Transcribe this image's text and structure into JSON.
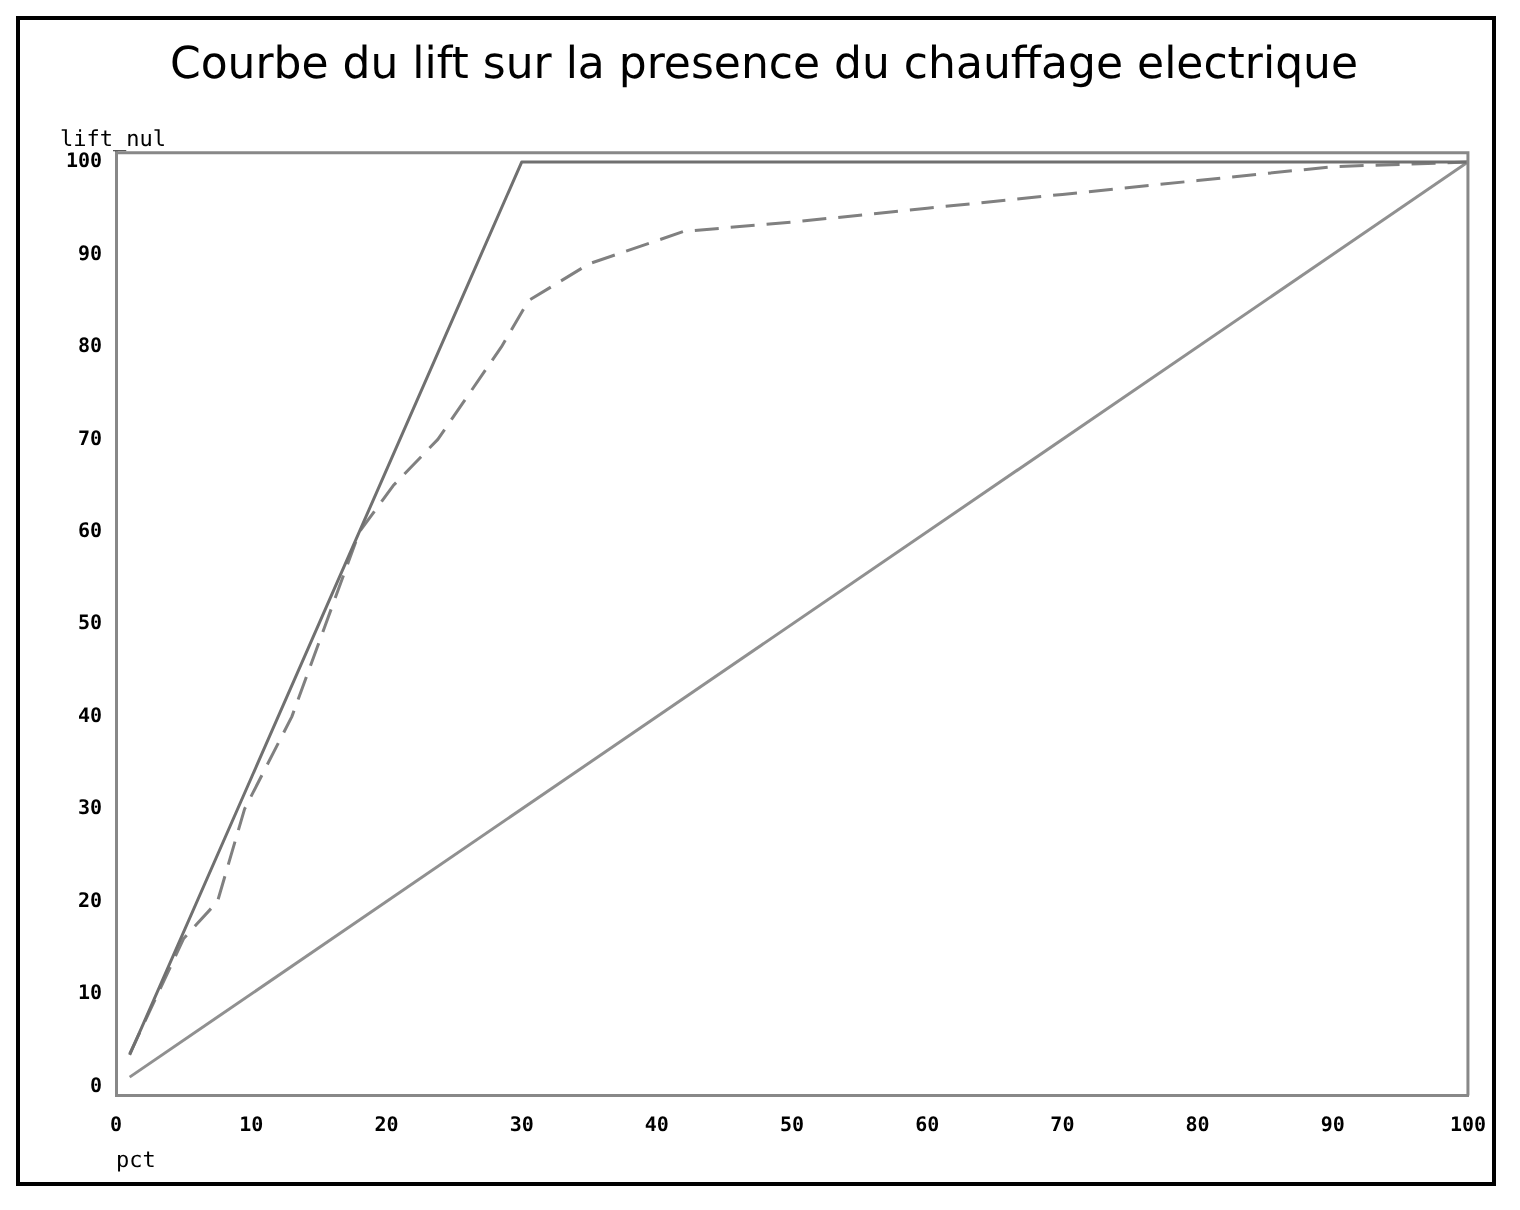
{
  "chart_data": {
    "type": "line",
    "title": "Courbe du lift sur la presence du chauffage electrique",
    "xlabel": "pct",
    "ylabel": "lift_nul",
    "xlim": [
      0,
      100
    ],
    "xticks": [
      0,
      10,
      20,
      30,
      40,
      50,
      60,
      70,
      80,
      90,
      100
    ],
    "ylim": [
      -1,
      101
    ],
    "yticks": [
      0,
      10,
      20,
      30,
      40,
      50,
      60,
      70,
      80,
      90,
      100
    ],
    "grid": false,
    "legend": false,
    "marker": "none",
    "series": [
      {
        "color": "#707070",
        "line_style": "solid",
        "x": [
          1,
          30,
          100
        ],
        "values": [
          3.4,
          100,
          100
        ]
      },
      {
        "color": "#808080",
        "line_style": "dashed",
        "x": [
          1,
          5,
          7.5,
          9.5,
          13,
          15.5,
          18,
          20.5,
          23.8,
          28.5,
          30.5,
          35,
          42,
          50,
          60,
          70,
          80,
          90,
          100
        ],
        "values": [
          3.5,
          16,
          20,
          30,
          40,
          50,
          60,
          65,
          70,
          80,
          85,
          89,
          92.5,
          93.5,
          95,
          96.5,
          98,
          99.5,
          100
        ]
      },
      {
        "color": "#909090",
        "line_style": "solid",
        "x": [
          1,
          100
        ],
        "values": [
          1,
          100
        ]
      }
    ]
  }
}
